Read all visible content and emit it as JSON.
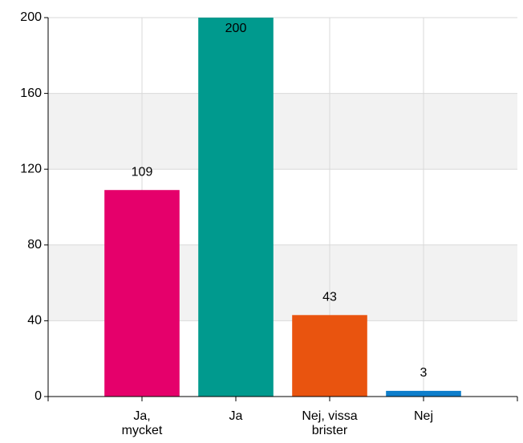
{
  "chart_data": {
    "type": "bar",
    "categories": [
      "Ja, mycket",
      "Ja",
      "Nej, vissa brister",
      "Nej"
    ],
    "values": [
      109,
      200,
      43,
      3
    ],
    "colors": [
      "#e5006b",
      "#009a8e",
      "#e9540f",
      "#0e7ecb"
    ],
    "ylim": [
      0,
      200
    ],
    "yticks": [
      0,
      40,
      80,
      120,
      160,
      200
    ],
    "grid": true
  }
}
